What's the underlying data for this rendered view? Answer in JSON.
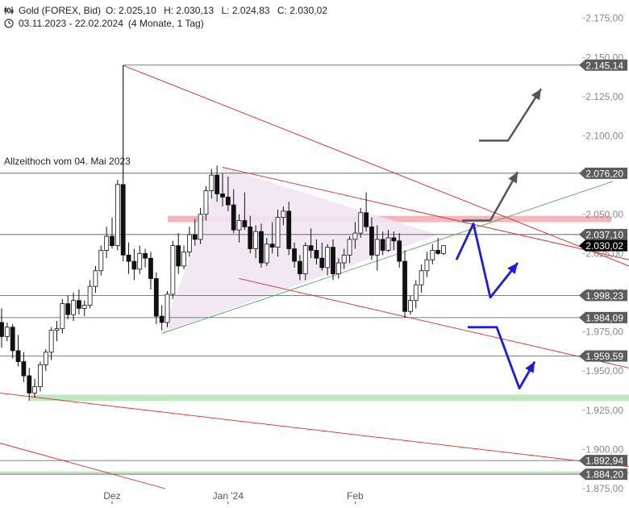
{
  "header": {
    "instrument": "Gold (FOREX, Bid)",
    "open": "O: 2.025,10",
    "high": "H: 2.030,13",
    "low": "L: 2.024,83",
    "close": "C: 2.030,02",
    "date_range": "03.11.2023 - 22.02.2024",
    "period": "(4 Monate, 1 Tag)"
  },
  "annotations": {
    "ath_label": "Allzeithoch  vom 04. Mai 2023"
  },
  "chart_data": {
    "type": "candlestick",
    "ylim": [
      1875,
      2180
    ],
    "y_ticks": [
      {
        "value": 2175,
        "label": "2.175,00"
      },
      {
        "value": 2150,
        "label": "2.150,00"
      },
      {
        "value": 2125,
        "label": "2.125,00"
      },
      {
        "value": 2100,
        "label": "2.100,00"
      },
      {
        "value": 2075,
        "label": "2.075,00"
      },
      {
        "value": 2050,
        "label": "2.050,00"
      },
      {
        "value": 2025,
        "label": "2.025,00"
      },
      {
        "value": 2000,
        "label": "2.000,00"
      },
      {
        "value": 1975,
        "label": "1.975,00"
      },
      {
        "value": 1950,
        "label": "1.950,00"
      },
      {
        "value": 1925,
        "label": "1.925,00"
      },
      {
        "value": 1900,
        "label": "1.900,00"
      },
      {
        "value": 1875,
        "label": "1.875,00"
      }
    ],
    "x_ticks": [
      {
        "label": "Dez",
        "index": 20
      },
      {
        "label": "Jan '24",
        "index": 41
      },
      {
        "label": "Feb",
        "index": 64
      }
    ],
    "levels": [
      {
        "value": 2145.14,
        "label": "2.145,14"
      },
      {
        "value": 2076.2,
        "label": "2.076,20"
      },
      {
        "value": 2037.1,
        "label": "2.037,10"
      },
      {
        "value": 1998.23,
        "label": "1.998,23"
      },
      {
        "value": 1984.09,
        "label": "1.984,09"
      },
      {
        "value": 1959.59,
        "label": "1.959,59"
      },
      {
        "value": 1892.94,
        "label": "1.892,94"
      },
      {
        "value": 1884.2,
        "label": "1.884,20"
      }
    ],
    "last_price": {
      "value": 2030.02,
      "label": "2.030,02"
    },
    "candles": [
      [
        1981,
        1990,
        1965,
        1972
      ],
      [
        1972,
        1981,
        1969,
        1978
      ],
      [
        1978,
        1980,
        1958,
        1963
      ],
      [
        1963,
        1973,
        1953,
        1956
      ],
      [
        1956,
        1962,
        1943,
        1947
      ],
      [
        1947,
        1952,
        1931,
        1936
      ],
      [
        1936,
        1945,
        1933,
        1940
      ],
      [
        1940,
        1956,
        1937,
        1954
      ],
      [
        1954,
        1964,
        1950,
        1962
      ],
      [
        1962,
        1978,
        1957,
        1976
      ],
      [
        1976,
        1982,
        1969,
        1977
      ],
      [
        1977,
        1996,
        1974,
        1993
      ],
      [
        1993,
        1998,
        1983,
        1986
      ],
      [
        1986,
        2000,
        1982,
        1995
      ],
      [
        1995,
        2002,
        1986,
        1990
      ],
      [
        1990,
        1995,
        1985,
        1992
      ],
      [
        1992,
        2008,
        1990,
        2004
      ],
      [
        2004,
        2017,
        2000,
        2014
      ],
      [
        2014,
        2030,
        2011,
        2027
      ],
      [
        2027,
        2042,
        2022,
        2036
      ],
      [
        2036,
        2048,
        2028,
        2030
      ],
      [
        2030,
        2072,
        2027,
        2069
      ],
      [
        2069,
        2145,
        2020,
        2024
      ],
      [
        2024,
        2032,
        2012,
        2020
      ],
      [
        2020,
        2028,
        2008,
        2015
      ],
      [
        2015,
        2030,
        2012,
        2025
      ],
      [
        2025,
        2028,
        2016,
        2022
      ],
      [
        2022,
        2026,
        2002,
        2009
      ],
      [
        2009,
        2013,
        1980,
        1985
      ],
      [
        1985,
        1992,
        1976,
        1981
      ],
      [
        1981,
        2001,
        1978,
        1999
      ],
      [
        1999,
        2033,
        1996,
        2030
      ],
      [
        2030,
        2038,
        2012,
        2017
      ],
      [
        2017,
        2030,
        2015,
        2026
      ],
      [
        2026,
        2042,
        2023,
        2037
      ],
      [
        2037,
        2047,
        2030,
        2034
      ],
      [
        2034,
        2054,
        2031,
        2050
      ],
      [
        2050,
        2068,
        2046,
        2065
      ],
      [
        2065,
        2079,
        2060,
        2075
      ],
      [
        2075,
        2081,
        2058,
        2063
      ],
      [
        2063,
        2076,
        2055,
        2061
      ],
      [
        2061,
        2074,
        2052,
        2056
      ],
      [
        2056,
        2066,
        2038,
        2040
      ],
      [
        2040,
        2050,
        2032,
        2046
      ],
      [
        2046,
        2064,
        2040,
        2042
      ],
      [
        2042,
        2049,
        2025,
        2028
      ],
      [
        2028,
        2043,
        2022,
        2039
      ],
      [
        2039,
        2044,
        2016,
        2019
      ],
      [
        2019,
        2035,
        2017,
        2031
      ],
      [
        2031,
        2045,
        2025,
        2029
      ],
      [
        2029,
        2053,
        2023,
        2048
      ],
      [
        2048,
        2055,
        2043,
        2052
      ],
      [
        2052,
        2058,
        2024,
        2028
      ],
      [
        2028,
        2032,
        2016,
        2020
      ],
      [
        2020,
        2024,
        2008,
        2012
      ],
      [
        2012,
        2032,
        2008,
        2030
      ],
      [
        2030,
        2041,
        2022,
        2027
      ],
      [
        2027,
        2034,
        2018,
        2022
      ],
      [
        2022,
        2032,
        2014,
        2016
      ],
      [
        2016,
        2031,
        2011,
        2029
      ],
      [
        2029,
        2034,
        2008,
        2012
      ],
      [
        2012,
        2022,
        2009,
        2019
      ],
      [
        2019,
        2028,
        2015,
        2024
      ],
      [
        2024,
        2036,
        2019,
        2034
      ],
      [
        2034,
        2045,
        2028,
        2038
      ],
      [
        2038,
        2054,
        2035,
        2051
      ],
      [
        2051,
        2064,
        2039,
        2042
      ],
      [
        2042,
        2048,
        2021,
        2024
      ],
      [
        2024,
        2043,
        2014,
        2034
      ],
      [
        2034,
        2039,
        2024,
        2027
      ],
      [
        2027,
        2040,
        2026,
        2035
      ],
      [
        2035,
        2039,
        2027,
        2033
      ],
      [
        2033,
        2038,
        2016,
        2020
      ],
      [
        2020,
        2027,
        1984,
        1988
      ],
      [
        1988,
        1998,
        1986,
        1995
      ],
      [
        1995,
        2008,
        1990,
        2005
      ],
      [
        2005,
        2018,
        2000,
        2014
      ],
      [
        2014,
        2026,
        2010,
        2021
      ],
      [
        2021,
        2031,
        2018,
        2027
      ],
      [
        2027,
        2035,
        2024,
        2025
      ],
      [
        2025,
        2030,
        2024,
        2030
      ]
    ]
  },
  "colors": {
    "background": "#ffffff",
    "candle": "#111111",
    "grid_line": "#555555",
    "trend_red": "#d62b2b",
    "trend_green": "#4caf50",
    "triangle_fill": "#f1e6f3",
    "resistance_zone": "#f2a9ae",
    "support_zone": "#bfe8bf",
    "arrow_gray": "#555555",
    "arrow_blue": "#1a1aee",
    "label_bg": "#5c5c5c",
    "label_text": "#ffffff",
    "last_price_bg": "#000000"
  }
}
